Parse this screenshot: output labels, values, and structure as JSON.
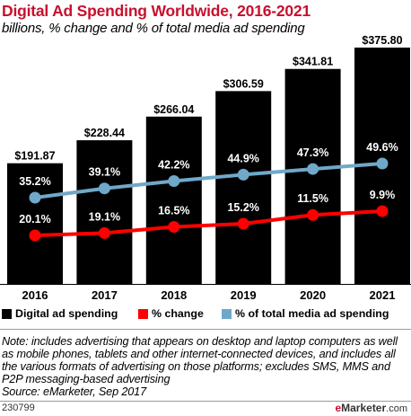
{
  "title": "Digital Ad Spending Worldwide, 2016-2021",
  "subtitle": "billions, % change and % of total media ad spending",
  "chart_data": {
    "type": "bar",
    "categories": [
      "2016",
      "2017",
      "2018",
      "2019",
      "2020",
      "2021"
    ],
    "series": [
      {
        "name": "Digital ad spending",
        "type": "bar",
        "color": "#000000",
        "values": [
          191.87,
          228.44,
          266.04,
          306.59,
          341.81,
          375.8
        ],
        "labels": [
          "$191.87",
          "$228.44",
          "$266.04",
          "$306.59",
          "$341.81",
          "$375.80"
        ]
      },
      {
        "name": "% change",
        "type": "line",
        "color": "#ff0000",
        "values": [
          20.1,
          19.1,
          16.5,
          15.2,
          11.5,
          9.9
        ],
        "labels": [
          "20.1%",
          "19.1%",
          "16.5%",
          "15.2%",
          "11.5%",
          "9.9%"
        ]
      },
      {
        "name": "% of total media ad spending",
        "type": "line",
        "color": "#6fa8c9",
        "values": [
          35.2,
          39.1,
          42.2,
          44.9,
          47.3,
          49.6
        ],
        "labels": [
          "35.2%",
          "39.1%",
          "42.2%",
          "44.9%",
          "47.3%",
          "49.6%"
        ]
      }
    ],
    "bar_axis": {
      "min": 0,
      "max": 380
    },
    "pct_axis": {
      "min": 0,
      "max": 55
    },
    "legend_position": "bottom",
    "grid": false
  },
  "note": "Note: includes advertising that appears on desktop and laptop computers as well as mobile phones, tablets and other internet-connected devices, and includes all the various formats of advertising on those platforms; excludes SMS, MMS and P2P messaging-based advertising",
  "source": "Source: eMarketer, Sep 2017",
  "chart_id": "230799",
  "brand": {
    "e": "e",
    "name": "Marketer",
    "suffix": ".com"
  }
}
